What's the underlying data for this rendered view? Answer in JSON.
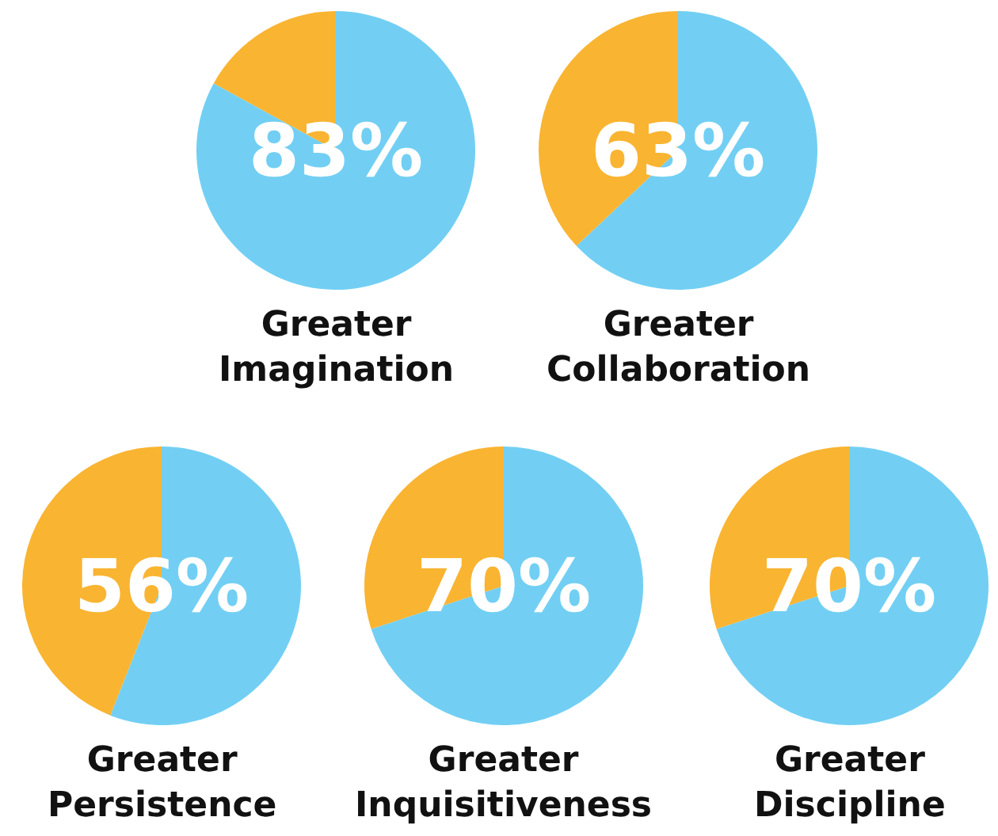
{
  "chart_data": [
    {
      "type": "pie",
      "title": "Greater\nImagination",
      "categories": [
        null,
        null
      ],
      "values": [
        83,
        17
      ],
      "colors": [
        "#72cff3",
        "#f9b431"
      ],
      "value_labels": [
        "83%",
        null
      ]
    },
    {
      "type": "pie",
      "title": "Greater\nCollaboration",
      "categories": [
        null,
        null
      ],
      "values": [
        63,
        37
      ],
      "colors": [
        "#72cff3",
        "#f9b431"
      ],
      "value_labels": [
        "63%",
        null
      ]
    },
    {
      "type": "pie",
      "title": "Greater\nPersistence",
      "categories": [
        null,
        null
      ],
      "values": [
        56,
        44
      ],
      "colors": [
        "#72cff3",
        "#f9b431"
      ],
      "value_labels": [
        "56%",
        null
      ]
    },
    {
      "type": "pie",
      "title": "Greater\nInquisitiveness",
      "categories": [
        null,
        null
      ],
      "values": [
        70,
        30
      ],
      "colors": [
        "#72cff3",
        "#f9b431"
      ],
      "value_labels": [
        "70%",
        null
      ]
    },
    {
      "type": "pie",
      "title": "Greater\nDiscipline",
      "categories": [
        null,
        null
      ],
      "values": [
        70,
        30
      ],
      "colors": [
        "#72cff3",
        "#f9b431"
      ],
      "value_labels": [
        "70%",
        null
      ]
    }
  ]
}
